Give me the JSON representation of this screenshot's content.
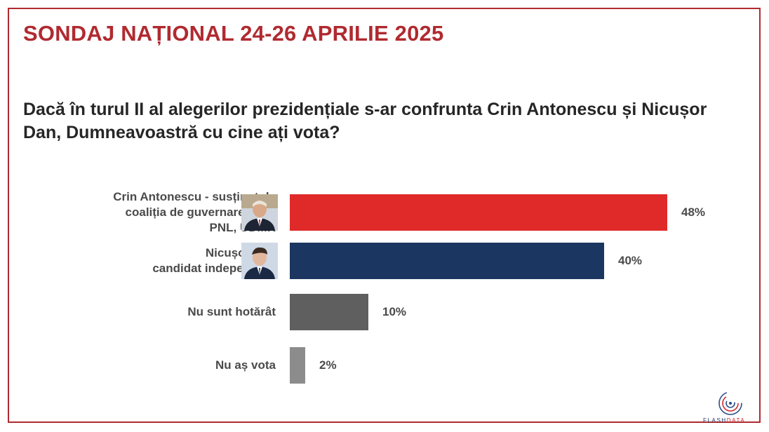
{
  "title": "SONDAJ NAȚIONAL 24-26 APRILIE 2025",
  "question": "Dacă în turul II al alegerilor prezidențiale s-ar confrunta Crin Antonescu și Nicușor Dan, Dumneavoastră cu cine ați vota?",
  "chart_data": {
    "type": "bar",
    "orientation": "horizontal",
    "categories": [
      [
        "Crin Antonescu - susținut de",
        "coaliția de guvernare PSD,",
        "PNL, UDMR"
      ],
      [
        "Nicușor Dan",
        "candidat independent"
      ],
      [
        "Nu sunt hotărât"
      ],
      [
        "Nu aș vota"
      ]
    ],
    "values": [
      48,
      40,
      10,
      2
    ],
    "value_labels": [
      "48%",
      "40%",
      "10%",
      "2%"
    ],
    "colors": [
      "#e02a2a",
      "#1b3660",
      "#5f5f5f",
      "#8c8c8c"
    ],
    "xlim": [
      0,
      48
    ],
    "grid": false,
    "legend": "none"
  },
  "avatars": [
    "person-photo-antonescu",
    "person-photo-dan"
  ],
  "logo": {
    "text_part1": "FLASH",
    "text_part2": "DATA",
    "icon": "spiral-logo-icon"
  }
}
